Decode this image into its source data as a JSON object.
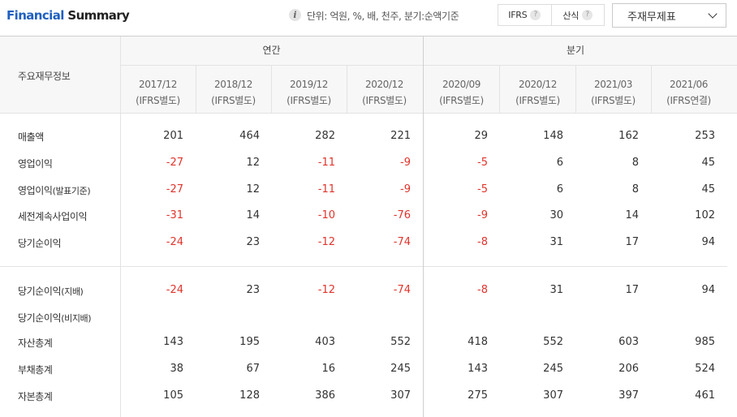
{
  "header": {
    "title_blue": "Financial",
    "title_dark": "Summary",
    "unit_text": "단위: 억원, %, 배, 천주, 분기:순액기준",
    "toggle": [
      "IFRS",
      "산식"
    ],
    "statement_select": "주재무제표"
  },
  "table": {
    "corner_label": "주요재무정보",
    "group_annual": "연간",
    "group_quarter": "분기",
    "periods": [
      {
        "date": "2017/12",
        "basis": "(IFRS별도)"
      },
      {
        "date": "2018/12",
        "basis": "(IFRS별도)"
      },
      {
        "date": "2019/12",
        "basis": "(IFRS별도)"
      },
      {
        "date": "2020/12",
        "basis": "(IFRS별도)"
      },
      {
        "date": "2020/09",
        "basis": "(IFRS별도)"
      },
      {
        "date": "2020/12",
        "basis": "(IFRS별도)"
      },
      {
        "date": "2021/03",
        "basis": "(IFRS별도)"
      },
      {
        "date": "2021/06",
        "basis": "(IFRS연결)"
      }
    ],
    "rows": [
      {
        "label": "매출액",
        "label_sub": "",
        "values": [
          "201",
          "464",
          "282",
          "221",
          "29",
          "148",
          "162",
          "253"
        ]
      },
      {
        "label": "영업이익",
        "label_sub": "",
        "values": [
          "-27",
          "12",
          "-11",
          "-9",
          "-5",
          "6",
          "8",
          "45"
        ]
      },
      {
        "label": "영업이익",
        "label_sub": "(발표기준)",
        "values": [
          "-27",
          "12",
          "-11",
          "-9",
          "-5",
          "6",
          "8",
          "45"
        ]
      },
      {
        "label": "세전계속사업이익",
        "label_sub": "",
        "values": [
          "-31",
          "14",
          "-10",
          "-76",
          "-9",
          "30",
          "14",
          "102"
        ]
      },
      {
        "label": "당기순이익",
        "label_sub": "",
        "values": [
          "-24",
          "23",
          "-12",
          "-74",
          "-8",
          "31",
          "17",
          "94"
        ]
      },
      {
        "label": "당기순이익",
        "label_sub": "(지배)",
        "values": [
          "-24",
          "23",
          "-12",
          "-74",
          "-8",
          "31",
          "17",
          "94"
        ]
      },
      {
        "label": "당기순이익",
        "label_sub": "(비지배)",
        "values": [
          "",
          "",
          "",
          "",
          "",
          "",
          "",
          ""
        ]
      },
      {
        "label": "자산총계",
        "label_sub": "",
        "values": [
          "143",
          "195",
          "403",
          "552",
          "418",
          "552",
          "603",
          "985"
        ]
      },
      {
        "label": "부채총계",
        "label_sub": "",
        "values": [
          "38",
          "67",
          "16",
          "245",
          "143",
          "245",
          "206",
          "524"
        ]
      },
      {
        "label": "자본총계",
        "label_sub": "",
        "values": [
          "105",
          "128",
          "386",
          "307",
          "275",
          "307",
          "397",
          "461"
        ]
      }
    ]
  },
  "colors": {
    "title_blue": "#1f5fbf",
    "negative": "#e0342c",
    "header_bg": "#f7f7f7",
    "border": "#e3e3e3"
  }
}
